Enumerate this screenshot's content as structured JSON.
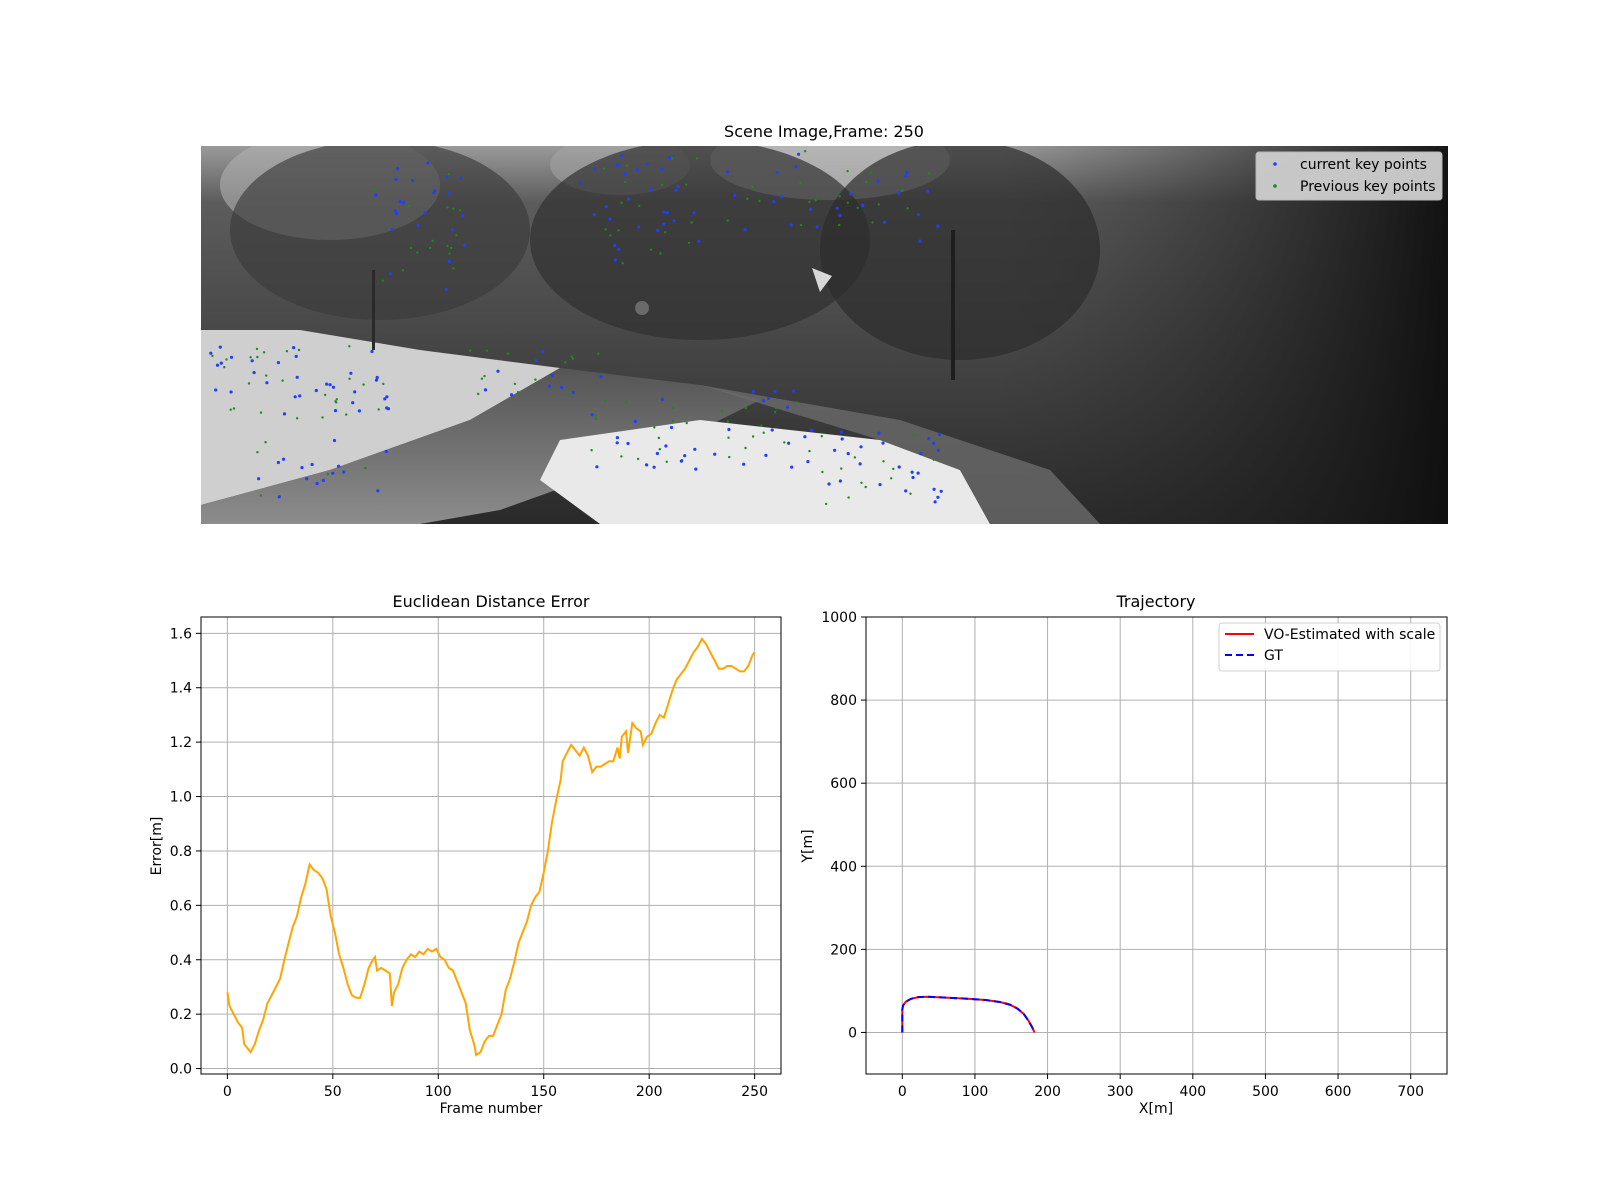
{
  "figure": {
    "scene": {
      "title": "Scene Image,Frame: 250",
      "legend": {
        "position": "top-right",
        "entries": [
          {
            "label": "current key points",
            "color": "#1f3fff",
            "marker": "point"
          },
          {
            "label": "Previous key points",
            "color": "#1a8c1a",
            "marker": "point"
          }
        ]
      }
    }
  },
  "chart_data": [
    {
      "type": "line",
      "title": "Euclidean Distance Error",
      "xlabel": "Frame number",
      "ylabel": "Error[m]",
      "xlim": [
        -12.5,
        262.5
      ],
      "ylim": [
        -0.02,
        1.66
      ],
      "xticks": [
        0,
        50,
        100,
        150,
        200,
        250
      ],
      "yticks": [
        0.0,
        0.2,
        0.4,
        0.6,
        0.8,
        1.0,
        1.2,
        1.4,
        1.6
      ],
      "grid": true,
      "legend": null,
      "series": [
        {
          "color": "#ffa500",
          "points": [
            [
              0,
              0.28
            ],
            [
              1,
              0.23
            ],
            [
              3,
              0.2
            ],
            [
              5,
              0.17
            ],
            [
              7,
              0.15
            ],
            [
              8,
              0.09
            ],
            [
              10,
              0.07
            ],
            [
              11,
              0.06
            ],
            [
              13,
              0.09
            ],
            [
              15,
              0.14
            ],
            [
              17,
              0.18
            ],
            [
              19,
              0.24
            ],
            [
              21,
              0.27
            ],
            [
              23,
              0.3
            ],
            [
              25,
              0.33
            ],
            [
              27,
              0.4
            ],
            [
              29,
              0.46
            ],
            [
              31,
              0.52
            ],
            [
              33,
              0.56
            ],
            [
              35,
              0.63
            ],
            [
              37,
              0.68
            ],
            [
              39,
              0.75
            ],
            [
              41,
              0.73
            ],
            [
              43,
              0.72
            ],
            [
              45,
              0.7
            ],
            [
              47,
              0.66
            ],
            [
              49,
              0.56
            ],
            [
              51,
              0.5
            ],
            [
              53,
              0.42
            ],
            [
              55,
              0.37
            ],
            [
              57,
              0.31
            ],
            [
              59,
              0.27
            ],
            [
              61,
              0.26
            ],
            [
              63,
              0.26
            ],
            [
              65,
              0.31
            ],
            [
              67,
              0.37
            ],
            [
              69,
              0.4
            ],
            [
              70,
              0.41
            ],
            [
              71,
              0.36
            ],
            [
              73,
              0.37
            ],
            [
              75,
              0.36
            ],
            [
              77,
              0.35
            ],
            [
              78,
              0.23
            ],
            [
              79,
              0.28
            ],
            [
              81,
              0.31
            ],
            [
              83,
              0.37
            ],
            [
              85,
              0.4
            ],
            [
              87,
              0.42
            ],
            [
              89,
              0.41
            ],
            [
              91,
              0.43
            ],
            [
              93,
              0.42
            ],
            [
              95,
              0.44
            ],
            [
              97,
              0.43
            ],
            [
              99,
              0.44
            ],
            [
              101,
              0.41
            ],
            [
              103,
              0.4
            ],
            [
              105,
              0.37
            ],
            [
              107,
              0.36
            ],
            [
              109,
              0.32
            ],
            [
              111,
              0.28
            ],
            [
              113,
              0.24
            ],
            [
              115,
              0.14
            ],
            [
              117,
              0.09
            ],
            [
              118,
              0.05
            ],
            [
              120,
              0.06
            ],
            [
              122,
              0.1
            ],
            [
              124,
              0.12
            ],
            [
              126,
              0.12
            ],
            [
              128,
              0.16
            ],
            [
              130,
              0.2
            ],
            [
              132,
              0.29
            ],
            [
              134,
              0.33
            ],
            [
              136,
              0.39
            ],
            [
              138,
              0.46
            ],
            [
              140,
              0.5
            ],
            [
              142,
              0.54
            ],
            [
              144,
              0.6
            ],
            [
              146,
              0.63
            ],
            [
              148,
              0.65
            ],
            [
              150,
              0.72
            ],
            [
              152,
              0.8
            ],
            [
              154,
              0.91
            ],
            [
              156,
              0.99
            ],
            [
              158,
              1.06
            ],
            [
              159,
              1.13
            ],
            [
              161,
              1.16
            ],
            [
              163,
              1.19
            ],
            [
              165,
              1.17
            ],
            [
              167,
              1.15
            ],
            [
              169,
              1.18
            ],
            [
              171,
              1.15
            ],
            [
              173,
              1.09
            ],
            [
              175,
              1.11
            ],
            [
              177,
              1.11
            ],
            [
              179,
              1.12
            ],
            [
              181,
              1.13
            ],
            [
              183,
              1.13
            ],
            [
              185,
              1.18
            ],
            [
              186,
              1.14
            ],
            [
              187,
              1.22
            ],
            [
              189,
              1.24
            ],
            [
              190,
              1.16
            ],
            [
              192,
              1.27
            ],
            [
              194,
              1.25
            ],
            [
              196,
              1.24
            ],
            [
              197,
              1.19
            ],
            [
              199,
              1.22
            ],
            [
              201,
              1.23
            ],
            [
              203,
              1.27
            ],
            [
              205,
              1.3
            ],
            [
              207,
              1.29
            ],
            [
              209,
              1.34
            ],
            [
              211,
              1.39
            ],
            [
              213,
              1.43
            ],
            [
              215,
              1.45
            ],
            [
              217,
              1.47
            ],
            [
              219,
              1.5
            ],
            [
              221,
              1.53
            ],
            [
              223,
              1.55
            ],
            [
              225,
              1.58
            ],
            [
              227,
              1.56
            ],
            [
              229,
              1.53
            ],
            [
              231,
              1.5
            ],
            [
              233,
              1.47
            ],
            [
              235,
              1.47
            ],
            [
              237,
              1.48
            ],
            [
              239,
              1.48
            ],
            [
              241,
              1.47
            ],
            [
              243,
              1.46
            ],
            [
              245,
              1.46
            ],
            [
              247,
              1.48
            ],
            [
              249,
              1.52
            ],
            [
              250,
              1.53
            ]
          ]
        }
      ]
    },
    {
      "type": "line",
      "title": "Trajectory",
      "xlabel": "X[m]",
      "ylabel": "Y[m]",
      "xlim": [
        -50,
        750
      ],
      "ylim": [
        -100,
        1000
      ],
      "xticks": [
        0,
        100,
        200,
        300,
        400,
        500,
        600,
        700
      ],
      "yticks": [
        0,
        200,
        400,
        600,
        800,
        1000
      ],
      "grid": true,
      "legend": "top-right",
      "series": [
        {
          "name": "VO-Estimated with scale",
          "color": "#ff0000",
          "dash": "solid",
          "points": [
            [
              0,
              0
            ],
            [
              0,
              30
            ],
            [
              0,
              55
            ],
            [
              1,
              65
            ],
            [
              5,
              74
            ],
            [
              12,
              81
            ],
            [
              22,
              85
            ],
            [
              35,
              86
            ],
            [
              60,
              84
            ],
            [
              90,
              81
            ],
            [
              115,
              78
            ],
            [
              135,
              73
            ],
            [
              148,
              67
            ],
            [
              158,
              58
            ],
            [
              167,
              45
            ],
            [
              173,
              30
            ],
            [
              178,
              15
            ],
            [
              181,
              4
            ],
            [
              182,
              0
            ]
          ]
        },
        {
          "name": "GT",
          "color": "#0000ff",
          "dash": "dashed",
          "points": [
            [
              0,
              0
            ],
            [
              0,
              30
            ],
            [
              0,
              55
            ],
            [
              1,
              65
            ],
            [
              5,
              74
            ],
            [
              12,
              81
            ],
            [
              22,
              85
            ],
            [
              35,
              86
            ],
            [
              60,
              84
            ],
            [
              90,
              81
            ],
            [
              115,
              78
            ],
            [
              135,
              73
            ],
            [
              148,
              67
            ],
            [
              158,
              58
            ],
            [
              167,
              45
            ],
            [
              173,
              30
            ],
            [
              178,
              15
            ],
            [
              181,
              4
            ],
            [
              182,
              0
            ]
          ]
        }
      ]
    }
  ]
}
